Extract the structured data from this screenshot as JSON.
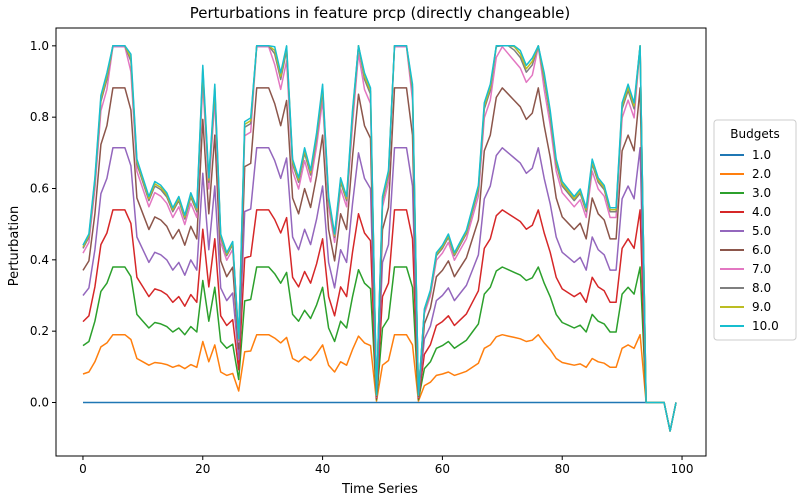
{
  "chart_data": {
    "type": "line",
    "title": "Perturbations in feature prcp (directly changeable)",
    "xlabel": "Time Series",
    "ylabel": "Perturbation",
    "xlim": [
      -4.5,
      104
    ],
    "ylim": [
      -0.15,
      1.05
    ],
    "xticks": [
      0,
      20,
      40,
      60,
      80,
      100
    ],
    "yticks": [
      0.0,
      0.2,
      0.4,
      0.6,
      0.8,
      1.0
    ],
    "grid": false,
    "legend": {
      "title": "Budgets",
      "placement": "right"
    },
    "colors": [
      "#1f77b4",
      "#ff7f0e",
      "#2ca02c",
      "#d62728",
      "#9467bd",
      "#8c564b",
      "#e377c2",
      "#7f7f7f",
      "#bcbd22",
      "#17becf"
    ],
    "x": [
      0,
      1,
      2,
      3,
      4,
      5,
      6,
      7,
      8,
      9,
      10,
      11,
      12,
      13,
      14,
      15,
      16,
      17,
      18,
      19,
      20,
      21,
      22,
      23,
      24,
      25,
      26,
      27,
      28,
      29,
      30,
      31,
      32,
      33,
      34,
      35,
      36,
      37,
      38,
      39,
      40,
      41,
      42,
      43,
      44,
      45,
      46,
      47,
      48,
      49,
      50,
      51,
      52,
      53,
      54,
      55,
      56,
      57,
      58,
      59,
      60,
      61,
      62,
      63,
      64,
      65,
      66,
      67,
      68,
      69,
      70,
      71,
      72,
      73,
      74,
      75,
      76,
      77,
      78,
      79,
      80,
      81,
      82,
      83,
      84,
      85,
      86,
      87,
      88,
      89,
      90,
      91,
      92,
      93,
      94,
      95,
      96,
      97,
      98,
      99
    ],
    "shape": [
      0.42,
      0.45,
      0.6,
      0.82,
      0.88,
      1.0,
      1.0,
      1.0,
      0.93,
      0.65,
      0.6,
      0.55,
      0.59,
      0.58,
      0.56,
      0.52,
      0.55,
      0.5,
      0.56,
      0.52,
      0.9,
      0.6,
      0.85,
      0.45,
      0.4,
      0.43,
      0.17,
      0.75,
      0.76,
      1.0,
      1.0,
      1.0,
      0.95,
      0.88,
      0.96,
      0.65,
      0.6,
      0.68,
      0.62,
      0.72,
      0.85,
      0.55,
      0.45,
      0.6,
      0.55,
      0.78,
      0.98,
      0.88,
      0.84,
      0.02,
      0.55,
      0.62,
      1.0,
      1.0,
      1.0,
      0.85,
      0.02,
      0.25,
      0.3,
      0.4,
      0.42,
      0.45,
      0.4,
      0.43,
      0.46,
      0.52,
      0.58,
      0.8,
      0.85,
      0.97,
      1.0,
      0.98,
      0.96,
      0.94,
      0.9,
      0.92,
      1.0,
      0.88,
      0.78,
      0.65,
      0.59,
      0.57,
      0.55,
      0.57,
      0.52,
      0.65,
      0.6,
      0.58,
      0.52,
      0.52,
      0.8,
      0.85,
      0.8,
      1.0,
      0.0,
      0.0,
      0.0,
      0.0,
      -0.08,
      0.0
    ],
    "series": [
      {
        "name": "1.0",
        "scale": 0.0,
        "overshoot": false
      },
      {
        "name": "2.0",
        "scale": 0.19,
        "overshoot": false
      },
      {
        "name": "3.0",
        "scale": 0.38,
        "overshoot": false
      },
      {
        "name": "4.0",
        "scale": 0.54,
        "overshoot": false
      },
      {
        "name": "5.0",
        "scale": 0.68,
        "overshoot": true
      },
      {
        "name": "6.0",
        "scale": 0.84,
        "overshoot": true
      },
      {
        "name": "7.0",
        "scale": 0.95,
        "overshoot": true
      },
      {
        "name": "8.0",
        "scale": 0.98,
        "overshoot": true
      },
      {
        "name": "9.0",
        "scale": 0.99,
        "overshoot": true
      },
      {
        "name": "10.0",
        "scale": 1.0,
        "overshoot": true
      }
    ]
  }
}
